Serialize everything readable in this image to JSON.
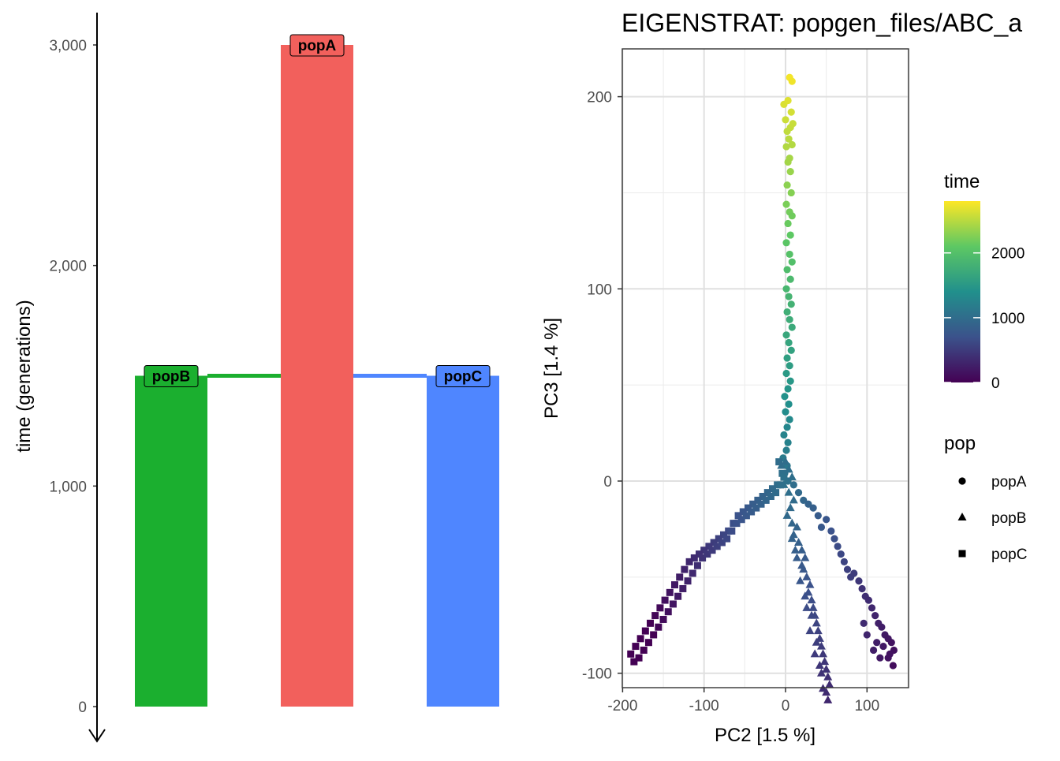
{
  "colors": {
    "popA": "#F2605C",
    "popB": "#1BAF2F",
    "popC": "#4F86FF",
    "gradient": [
      "#440154",
      "#3B528B",
      "#21908C",
      "#5DC863",
      "#FDE725"
    ]
  },
  "chart_data": [
    {
      "type": "bar",
      "title": "",
      "ylabel": "time (generations)",
      "ylim": [
        0,
        3000
      ],
      "yticks": [
        "0",
        "1,000",
        "2,000",
        "3,000"
      ],
      "y_axis_reversed_arrow": true,
      "series": [
        {
          "name": "popB",
          "start": 1500,
          "end": 0,
          "color": "#1BAF2F"
        },
        {
          "name": "popA",
          "start": 3000,
          "end": 0,
          "color": "#F2605C"
        },
        {
          "name": "popC",
          "start": 1500,
          "end": 0,
          "color": "#4F86FF"
        }
      ],
      "splits": [
        {
          "from": "popA",
          "to": "popB",
          "time": 1500
        },
        {
          "from": "popA",
          "to": "popC",
          "time": 1500
        }
      ]
    },
    {
      "type": "scatter",
      "title": "EIGENSTRAT: popgen_files/ABC_a",
      "xlabel": "PC2 [1.5 %]",
      "ylabel": "PC3 [1.4 %]",
      "xlim": [
        -205,
        152
      ],
      "ylim": [
        -108,
        225
      ],
      "xticks": [
        -200,
        -100,
        0,
        100
      ],
      "yticks": [
        -100,
        0,
        100,
        200
      ],
      "grid": true,
      "color_legend": {
        "title": "time",
        "ticks": [
          0,
          1000,
          2000
        ],
        "range": [
          0,
          2800
        ]
      },
      "shape_legend": {
        "title": "pop",
        "items": [
          {
            "label": "popA",
            "shape": "circle"
          },
          {
            "label": "popB",
            "shape": "triangle"
          },
          {
            "label": "popC",
            "shape": "square"
          }
        ]
      },
      "points": {
        "popA": [
          [
            5,
            210
          ],
          [
            8,
            208
          ],
          [
            -2,
            196
          ],
          [
            3,
            198
          ],
          [
            7,
            192
          ],
          [
            0,
            188
          ],
          [
            6,
            184
          ],
          [
            2,
            182
          ],
          [
            9,
            186
          ],
          [
            4,
            178
          ],
          [
            8,
            175
          ],
          [
            1,
            174
          ],
          [
            5,
            168
          ],
          [
            3,
            166
          ],
          [
            6,
            161
          ],
          [
            2,
            154
          ],
          [
            7,
            150
          ],
          [
            1,
            144
          ],
          [
            5,
            140
          ],
          [
            8,
            138
          ],
          [
            3,
            134
          ],
          [
            6,
            128
          ],
          [
            1,
            124
          ],
          [
            5,
            118
          ],
          [
            8,
            114
          ],
          [
            2,
            110
          ],
          [
            6,
            105
          ],
          [
            1,
            100
          ],
          [
            4,
            96
          ],
          [
            7,
            92
          ],
          [
            2,
            88
          ],
          [
            5,
            84
          ],
          [
            8,
            80
          ],
          [
            1,
            76
          ],
          [
            4,
            72
          ],
          [
            7,
            68
          ],
          [
            2,
            64
          ],
          [
            5,
            60
          ],
          [
            1,
            56
          ],
          [
            6,
            52
          ],
          [
            3,
            48
          ],
          [
            -1,
            44
          ],
          [
            4,
            40
          ],
          [
            0,
            36
          ],
          [
            5,
            32
          ],
          [
            2,
            28
          ],
          [
            -2,
            24
          ],
          [
            3,
            20
          ],
          [
            1,
            16
          ],
          [
            -3,
            12
          ],
          [
            2,
            8
          ],
          [
            -1,
            4
          ],
          [
            3,
            0
          ],
          [
            10,
            -2
          ],
          [
            16,
            -6
          ],
          [
            22,
            -10
          ],
          [
            28,
            -12
          ],
          [
            34,
            -14
          ],
          [
            40,
            -18
          ],
          [
            44,
            -24
          ],
          [
            50,
            -20
          ],
          [
            56,
            -26
          ],
          [
            60,
            -30
          ],
          [
            64,
            -34
          ],
          [
            68,
            -38
          ],
          [
            72,
            -42
          ],
          [
            76,
            -46
          ],
          [
            80,
            -50
          ],
          [
            84,
            -48
          ],
          [
            90,
            -52
          ],
          [
            94,
            -56
          ],
          [
            98,
            -60
          ],
          [
            102,
            -62
          ],
          [
            106,
            -66
          ],
          [
            110,
            -70
          ],
          [
            114,
            -74
          ],
          [
            118,
            -76
          ],
          [
            122,
            -80
          ],
          [
            126,
            -82
          ],
          [
            130,
            -84
          ],
          [
            133,
            -88
          ],
          [
            126,
            -92
          ],
          [
            120,
            -86
          ],
          [
            116,
            -92
          ],
          [
            132,
            -96
          ],
          [
            128,
            -90
          ],
          [
            112,
            -84
          ],
          [
            108,
            -88
          ],
          [
            100,
            -80
          ],
          [
            96,
            -74
          ]
        ],
        "popB": [
          [
            -5,
            8
          ],
          [
            0,
            10
          ],
          [
            4,
            6
          ],
          [
            8,
            2
          ],
          [
            -2,
            -2
          ],
          [
            4,
            -6
          ],
          [
            10,
            -10
          ],
          [
            6,
            -14
          ],
          [
            2,
            -18
          ],
          [
            8,
            -22
          ],
          [
            14,
            -24
          ],
          [
            10,
            -28
          ],
          [
            16,
            -32
          ],
          [
            20,
            -36
          ],
          [
            24,
            -40
          ],
          [
            22,
            -46
          ],
          [
            26,
            -50
          ],
          [
            30,
            -54
          ],
          [
            28,
            -58
          ],
          [
            32,
            -62
          ],
          [
            34,
            -66
          ],
          [
            36,
            -70
          ],
          [
            38,
            -74
          ],
          [
            40,
            -78
          ],
          [
            42,
            -82
          ],
          [
            44,
            -86
          ],
          [
            46,
            -90
          ],
          [
            48,
            -94
          ],
          [
            50,
            -98
          ],
          [
            52,
            -102
          ],
          [
            54,
            -106
          ],
          [
            50,
            -110
          ],
          [
            52,
            -114
          ],
          [
            46,
            -108
          ],
          [
            44,
            -100
          ],
          [
            42,
            -96
          ],
          [
            36,
            -90
          ],
          [
            38,
            -84
          ],
          [
            30,
            -78
          ],
          [
            32,
            -70
          ],
          [
            26,
            -66
          ],
          [
            24,
            -60
          ],
          [
            18,
            -52
          ],
          [
            20,
            -44
          ],
          [
            14,
            -40
          ],
          [
            12,
            -36
          ],
          [
            8,
            -30
          ]
        ],
        "popC": [
          [
            -8,
            10
          ],
          [
            -4,
            4
          ],
          [
            -10,
            -2
          ],
          [
            -16,
            -4
          ],
          [
            -22,
            -6
          ],
          [
            -28,
            -8
          ],
          [
            -34,
            -10
          ],
          [
            -40,
            -12
          ],
          [
            -46,
            -14
          ],
          [
            -52,
            -16
          ],
          [
            -58,
            -18
          ],
          [
            -64,
            -22
          ],
          [
            -70,
            -26
          ],
          [
            -76,
            -28
          ],
          [
            -82,
            -30
          ],
          [
            -88,
            -32
          ],
          [
            -94,
            -34
          ],
          [
            -100,
            -36
          ],
          [
            -106,
            -38
          ],
          [
            -112,
            -40
          ],
          [
            -118,
            -42
          ],
          [
            -124,
            -46
          ],
          [
            -130,
            -50
          ],
          [
            -136,
            -54
          ],
          [
            -142,
            -58
          ],
          [
            -148,
            -62
          ],
          [
            -154,
            -66
          ],
          [
            -160,
            -70
          ],
          [
            -166,
            -74
          ],
          [
            -172,
            -78
          ],
          [
            -178,
            -82
          ],
          [
            -184,
            -86
          ],
          [
            -190,
            -90
          ],
          [
            -186,
            -94
          ],
          [
            -180,
            -92
          ],
          [
            -174,
            -88
          ],
          [
            -168,
            -84
          ],
          [
            -162,
            -80
          ],
          [
            -156,
            -76
          ],
          [
            -150,
            -72
          ],
          [
            -144,
            -68
          ],
          [
            -138,
            -64
          ],
          [
            -132,
            -60
          ],
          [
            -126,
            -56
          ],
          [
            -120,
            -52
          ],
          [
            -114,
            -48
          ],
          [
            -108,
            -44
          ],
          [
            -102,
            -40
          ],
          [
            -96,
            -38
          ],
          [
            -90,
            -36
          ],
          [
            -84,
            -34
          ],
          [
            -78,
            -32
          ],
          [
            -72,
            -30
          ],
          [
            -66,
            -26
          ],
          [
            -60,
            -22
          ],
          [
            -54,
            -20
          ],
          [
            -48,
            -18
          ],
          [
            -42,
            -16
          ],
          [
            -36,
            -14
          ],
          [
            -30,
            -12
          ],
          [
            -24,
            -10
          ],
          [
            -18,
            -8
          ],
          [
            -12,
            -6
          ],
          [
            -6,
            -2
          ],
          [
            -2,
            2
          ]
        ]
      }
    }
  ]
}
